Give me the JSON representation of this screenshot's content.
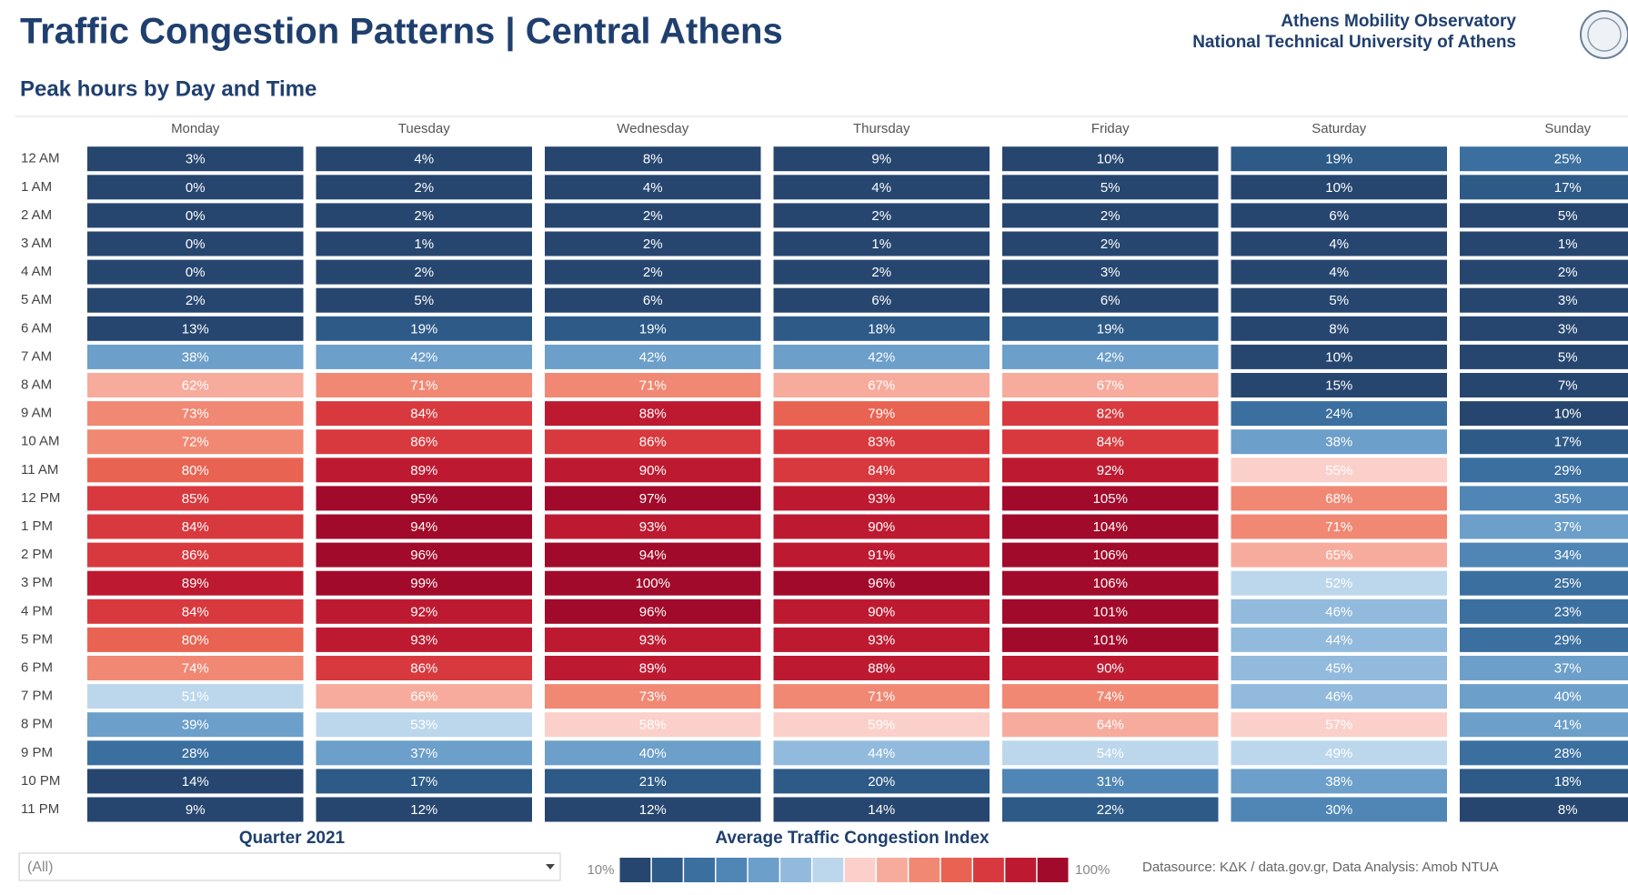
{
  "chart_data": {
    "type": "heatmap",
    "title": "Traffic Congestion Patterns | Central Athens",
    "subtitle": "Peak hours by Day and Time",
    "organization": [
      "Athens Mobility Observatory",
      "National Technical University of Athens"
    ],
    "categories": [
      "12 AM",
      "1 AM",
      "2 AM",
      "3 AM",
      "4 AM",
      "5 AM",
      "6 AM",
      "7 AM",
      "8 AM",
      "9 AM",
      "10 AM",
      "11 AM",
      "12 PM",
      "1 PM",
      "2 PM",
      "3 PM",
      "4 PM",
      "5 PM",
      "6 PM",
      "7 PM",
      "8 PM",
      "9 PM",
      "10 PM",
      "11 PM"
    ],
    "series": [
      {
        "name": "Monday",
        "values": [
          3,
          0,
          0,
          0,
          0,
          2,
          13,
          38,
          62,
          73,
          72,
          80,
          85,
          84,
          86,
          89,
          84,
          80,
          74,
          51,
          39,
          28,
          14,
          9
        ],
        "value_labels": [
          "3%",
          "0%",
          "0%",
          "0%",
          "0%",
          "2%",
          "13%",
          "38%",
          "62%",
          "73%",
          "72%",
          "80%",
          "85%",
          "84%",
          "86%",
          "89%",
          "84%",
          "80%",
          "74%",
          "51%",
          "39%",
          "28%",
          "14%",
          "9%"
        ]
      },
      {
        "name": "Tuesday",
        "values": [
          4,
          2,
          2,
          1,
          2,
          5,
          19,
          42,
          71,
          84,
          86,
          89,
          95,
          94,
          96,
          99,
          92,
          93,
          86,
          66,
          53,
          37,
          17,
          12
        ],
        "value_labels": [
          "4%",
          "2%",
          "2%",
          "1%",
          "2%",
          "5%",
          "19%",
          "42%",
          "71%",
          "84%",
          "86%",
          "89%",
          "95%",
          "94%",
          "96%",
          "99%",
          "92%",
          "93%",
          "86%",
          "66%",
          "53%",
          "37%",
          "17%",
          "12%"
        ]
      },
      {
        "name": "Wednesday",
        "values": [
          8,
          4,
          2,
          2,
          2,
          6,
          19,
          42,
          71,
          88,
          86,
          90,
          97,
          93,
          94,
          100,
          96,
          93,
          89,
          73,
          58,
          40,
          21,
          12
        ],
        "value_labels": [
          "8%",
          "4%",
          "2%",
          "2%",
          "2%",
          "6%",
          "19%",
          "42%",
          "71%",
          "88%",
          "86%",
          "90%",
          "97%",
          "93%",
          "94%",
          "100%",
          "96%",
          "93%",
          "89%",
          "73%",
          "58%",
          "40%",
          "21%",
          "12%"
        ]
      },
      {
        "name": "Thursday",
        "values": [
          9,
          4,
          2,
          1,
          2,
          6,
          18,
          42,
          67,
          79,
          83,
          84,
          93,
          90,
          91,
          96,
          90,
          93,
          88,
          71,
          59,
          44,
          20,
          14
        ],
        "value_labels": [
          "9%",
          "4%",
          "2%",
          "1%",
          "2%",
          "6%",
          "18%",
          "42%",
          "67%",
          "79%",
          "83%",
          "84%",
          "93%",
          "90%",
          "91%",
          "96%",
          "90%",
          "93%",
          "88%",
          "71%",
          "59%",
          "44%",
          "20%",
          "14%"
        ]
      },
      {
        "name": "Friday",
        "values": [
          10,
          5,
          2,
          2,
          3,
          6,
          19,
          42,
          67,
          82,
          84,
          92,
          105,
          104,
          106,
          106,
          101,
          101,
          90,
          74,
          64,
          54,
          31,
          22
        ],
        "value_labels": [
          "10%",
          "5%",
          "2%",
          "2%",
          "3%",
          "6%",
          "19%",
          "42%",
          "67%",
          "82%",
          "84%",
          "92%",
          "105%",
          "104%",
          "106%",
          "106%",
          "101%",
          "101%",
          "90%",
          "74%",
          "64%",
          "54%",
          "31%",
          "22%"
        ]
      },
      {
        "name": "Saturday",
        "values": [
          19,
          10,
          6,
          4,
          4,
          5,
          8,
          10,
          15,
          24,
          38,
          55,
          68,
          71,
          65,
          52,
          46,
          44,
          45,
          46,
          57,
          49,
          38,
          30
        ],
        "value_labels": [
          "19%",
          "10%",
          "6%",
          "4%",
          "4%",
          "5%",
          "8%",
          "10%",
          "15%",
          "24%",
          "38%",
          "55%",
          "68%",
          "71%",
          "65%",
          "52%",
          "46%",
          "44%",
          "45%",
          "46%",
          "57%",
          "49%",
          "38%",
          "30%"
        ]
      },
      {
        "name": "Sunday",
        "values": [
          25,
          17,
          5,
          1,
          2,
          3,
          3,
          5,
          7,
          10,
          17,
          29,
          35,
          37,
          34,
          25,
          23,
          29,
          37,
          40,
          41,
          28,
          18,
          8
        ],
        "value_labels": [
          "25%",
          "17%",
          "5%",
          "1%",
          "2%",
          "3%",
          "3%",
          "5%",
          "7%",
          "10%",
          "17%",
          "29%",
          "35%",
          "37%",
          "34%",
          "25%",
          "23%",
          "29%",
          "37%",
          "40%",
          "41%",
          "28%",
          "18%",
          "8%"
        ]
      }
    ],
    "colorbar": {
      "title": "Average Traffic Congestion Index",
      "ticks": [
        {
          "value": 10,
          "label": "10%"
        },
        {
          "value": 100,
          "label": "100%"
        }
      ],
      "colors": [
        "#26466f",
        "#2d5a87",
        "#3a6f9f",
        "#4f86b6",
        "#6c9fc9",
        "#92badc",
        "#bcd7ec",
        "#fbd0ca",
        "#f7ab9d",
        "#f18874",
        "#e96352",
        "#d8393e",
        "#bd1a31",
        "#a10a2a"
      ]
    },
    "filter": {
      "label": "Quarter 2021",
      "value": "(All)"
    },
    "source": "Datasource: ΚΔΚ / data.gov.gr, Data Analysis: Amob NTUA"
  }
}
